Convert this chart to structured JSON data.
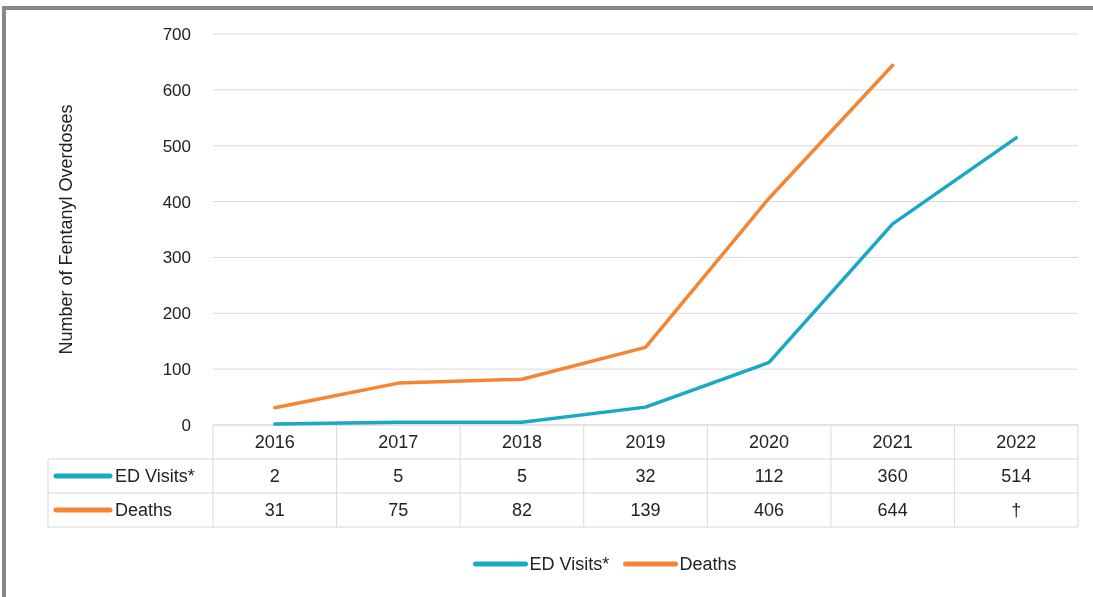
{
  "chart_data": {
    "type": "line",
    "ylabel": "Number of Fentanyl Overdoses",
    "categories": [
      "2016",
      "2017",
      "2018",
      "2019",
      "2020",
      "2021",
      "2022"
    ],
    "series": [
      {
        "name": "ED Visits*",
        "color": "#1aa9c4",
        "values": [
          2,
          5,
          5,
          32,
          112,
          360,
          514
        ],
        "value_labels": [
          "2",
          "5",
          "5",
          "32",
          "112",
          "360",
          "514"
        ]
      },
      {
        "name": "Deaths",
        "color": "#f58532",
        "values": [
          31,
          75,
          82,
          139,
          406,
          644,
          null
        ],
        "value_labels": [
          "31",
          "75",
          "82",
          "139",
          "406",
          "644",
          "†"
        ]
      }
    ],
    "ylim": [
      0,
      700
    ],
    "yticks": [
      0,
      100,
      200,
      300,
      400,
      500,
      600,
      700
    ],
    "grid": "y",
    "legend": "bottom",
    "marker": "none",
    "line_style": "solid"
  }
}
